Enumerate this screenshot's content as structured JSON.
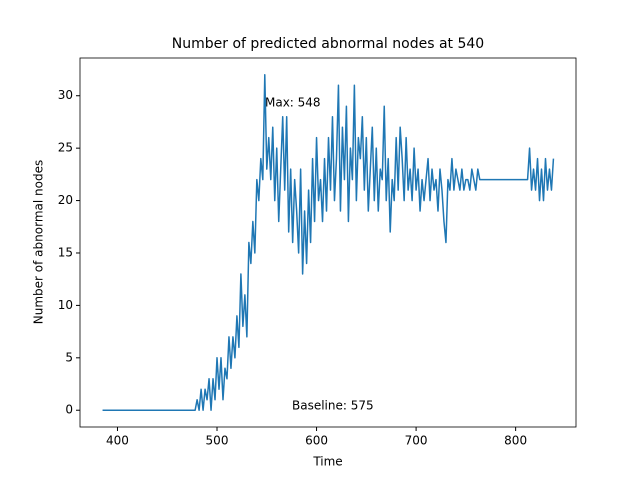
{
  "chart_data": {
    "type": "line",
    "title": "Number of predicted abnormal nodes at 540",
    "xlabel": "Time",
    "ylabel": "Number of abnormal nodes",
    "annotations": [
      "Max: 548",
      "Baseline: 575"
    ],
    "color": "#1f77b4",
    "x": [
      385,
      478,
      480,
      482,
      484,
      486,
      488,
      490,
      492,
      494,
      496,
      498,
      500,
      502,
      504,
      506,
      508,
      510,
      512,
      514,
      516,
      518,
      520,
      522,
      524,
      526,
      528,
      530,
      532,
      534,
      536,
      538,
      540,
      542,
      544,
      546,
      548,
      550,
      552,
      554,
      556,
      558,
      560,
      562,
      564,
      566,
      568,
      570,
      572,
      574,
      576,
      578,
      580,
      582,
      584,
      586,
      588,
      590,
      592,
      594,
      596,
      598,
      600,
      602,
      604,
      606,
      608,
      610,
      612,
      614,
      616,
      618,
      620,
      622,
      624,
      626,
      628,
      630,
      632,
      634,
      636,
      638,
      640,
      642,
      644,
      646,
      648,
      650,
      652,
      654,
      656,
      658,
      660,
      662,
      664,
      666,
      668,
      670,
      672,
      674,
      676,
      678,
      680,
      682,
      684,
      686,
      688,
      690,
      692,
      694,
      696,
      698,
      700,
      702,
      704,
      706,
      708,
      710,
      712,
      714,
      716,
      718,
      720,
      722,
      724,
      726,
      728,
      730,
      732,
      734,
      736,
      738,
      740,
      742,
      744,
      746,
      748,
      750,
      752,
      754,
      756,
      758,
      760,
      762,
      764,
      766,
      768,
      770,
      810,
      812,
      814,
      816,
      818,
      820,
      822,
      824,
      826,
      828,
      830,
      832,
      834,
      836,
      838
    ],
    "values": [
      0,
      0,
      1,
      0,
      2,
      0,
      2,
      1,
      3,
      0,
      3,
      1,
      5,
      2,
      5,
      1,
      4,
      3,
      7,
      4,
      7,
      5,
      9,
      6,
      13,
      8,
      11,
      7,
      16,
      14,
      18,
      15,
      22,
      20,
      24,
      22,
      32,
      23,
      26,
      22,
      27,
      20,
      25,
      18,
      23,
      28,
      21,
      28,
      17,
      23,
      16,
      22,
      19,
      15,
      23,
      13,
      19,
      14,
      21,
      16,
      24,
      18,
      26,
      20,
      22,
      18,
      24,
      19,
      26,
      21,
      28,
      20,
      24,
      31,
      19,
      27,
      22,
      29,
      18,
      25,
      22,
      31,
      20,
      26,
      24,
      28,
      21,
      26,
      19,
      23,
      27,
      20,
      25,
      19,
      23,
      22,
      29,
      20,
      24,
      17,
      22,
      20,
      26,
      21,
      27,
      24,
      20,
      26,
      21,
      23,
      20,
      25,
      21,
      23,
      19,
      22,
      20,
      22,
      24,
      20,
      23,
      21,
      22,
      19,
      23,
      21,
      18,
      16,
      22,
      21,
      24,
      21,
      23,
      22,
      21,
      23,
      21,
      22,
      22,
      21,
      23,
      22,
      21,
      23,
      22,
      22,
      22,
      22,
      22,
      22,
      25,
      21,
      23,
      21,
      24,
      20,
      23,
      20,
      24,
      21,
      23,
      21,
      24
    ],
    "xlim": [
      362.35,
      860.65
    ],
    "ylim": [
      -1.6,
      33.6
    ],
    "xticks": [
      400,
      500,
      600,
      700,
      800
    ],
    "yticks": [
      0,
      5,
      10,
      15,
      20,
      25,
      30
    ]
  }
}
